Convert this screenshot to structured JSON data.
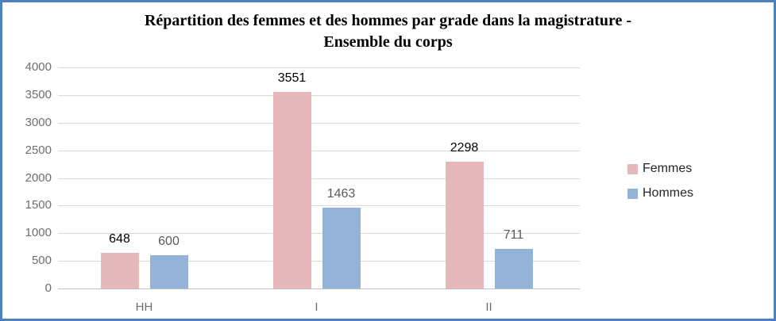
{
  "chart": {
    "title": {
      "line1": "Répartition des femmes et des hommes par grade dans la magistrature -",
      "line2": "Ensemble du corps"
    },
    "colors": {
      "frame_border": "#4d80c0",
      "gridline": "#d9d9d9",
      "axis_line": "#c3c3c3",
      "axis_text": "#6e6e6e",
      "femmes": "#e5b8bb",
      "hommes": "#95b3d7",
      "femmes_label_text": "#000000",
      "hommes_label_text": "#595959"
    }
  },
  "chart_data": {
    "type": "bar",
    "title": "Répartition des femmes et des hommes par grade dans la magistrature - Ensemble du corps",
    "categories": [
      "HH",
      "I",
      "II"
    ],
    "series": [
      {
        "name": "Femmes",
        "color": "#e5b8bb",
        "label_color": "#000000",
        "values": [
          648,
          3551,
          2298
        ]
      },
      {
        "name": "Hommes",
        "color": "#95b3d7",
        "label_color": "#595959",
        "values": [
          600,
          1463,
          711
        ]
      }
    ],
    "ylim": [
      0,
      4000
    ],
    "yticks": [
      0,
      500,
      1000,
      1500,
      2000,
      2500,
      3000,
      3500,
      4000
    ],
    "grid": true,
    "legend_position": "right",
    "data_labels": true
  }
}
